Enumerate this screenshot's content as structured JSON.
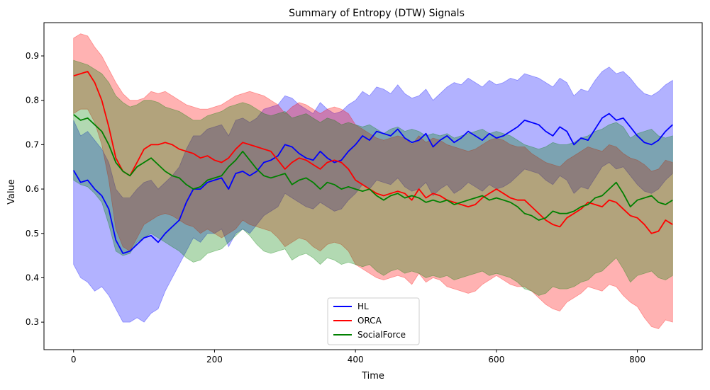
{
  "chart_data": {
    "type": "line",
    "title": "Summary of Entropy (DTW) Signals",
    "xlabel": "Time",
    "ylabel": "Value",
    "xlim": [
      -42,
      892
    ],
    "ylim": [
      0.238,
      0.975
    ],
    "xticks": [
      0,
      200,
      400,
      600,
      800
    ],
    "yticks": [
      0.3,
      0.4,
      0.5,
      0.6,
      0.7,
      0.8,
      0.9
    ],
    "grid": false,
    "legend": {
      "location": "lower center"
    },
    "series": [
      {
        "name": "HL",
        "color": "#0000ff",
        "x": [
          0,
          10,
          20,
          30,
          40,
          50,
          60,
          70,
          80,
          90,
          100,
          110,
          120,
          130,
          140,
          150,
          160,
          170,
          180,
          190,
          200,
          210,
          220,
          230,
          240,
          250,
          260,
          270,
          280,
          290,
          300,
          310,
          320,
          330,
          340,
          350,
          360,
          370,
          380,
          390,
          400,
          410,
          420,
          430,
          440,
          450,
          460,
          470,
          480,
          490,
          500,
          510,
          520,
          530,
          540,
          550,
          560,
          570,
          580,
          590,
          600,
          610,
          620,
          630,
          640,
          650,
          660,
          670,
          680,
          690,
          700,
          710,
          720,
          730,
          740,
          750,
          760,
          770,
          780,
          790,
          800,
          810,
          820,
          830,
          840,
          850
        ],
        "mean": [
          0.642,
          0.615,
          0.62,
          0.6,
          0.585,
          0.555,
          0.485,
          0.455,
          0.46,
          0.475,
          0.49,
          0.495,
          0.48,
          0.5,
          0.515,
          0.53,
          0.57,
          0.6,
          0.6,
          0.615,
          0.62,
          0.625,
          0.6,
          0.635,
          0.64,
          0.63,
          0.64,
          0.66,
          0.665,
          0.675,
          0.7,
          0.695,
          0.68,
          0.67,
          0.665,
          0.685,
          0.67,
          0.66,
          0.665,
          0.685,
          0.7,
          0.72,
          0.71,
          0.73,
          0.725,
          0.72,
          0.735,
          0.715,
          0.705,
          0.71,
          0.725,
          0.695,
          0.71,
          0.72,
          0.705,
          0.715,
          0.73,
          0.72,
          0.71,
          0.725,
          0.715,
          0.72,
          0.73,
          0.74,
          0.755,
          0.75,
          0.745,
          0.73,
          0.72,
          0.74,
          0.73,
          0.7,
          0.715,
          0.71,
          0.735,
          0.76,
          0.77,
          0.755,
          0.76,
          0.74,
          0.72,
          0.705,
          0.7,
          0.71,
          0.73,
          0.745
        ],
        "upper": [
          0.755,
          0.72,
          0.73,
          0.71,
          0.69,
          0.66,
          0.6,
          0.58,
          0.58,
          0.6,
          0.615,
          0.62,
          0.6,
          0.615,
          0.63,
          0.65,
          0.69,
          0.72,
          0.72,
          0.735,
          0.74,
          0.745,
          0.72,
          0.755,
          0.76,
          0.75,
          0.76,
          0.78,
          0.785,
          0.79,
          0.81,
          0.805,
          0.79,
          0.78,
          0.77,
          0.795,
          0.78,
          0.77,
          0.775,
          0.79,
          0.8,
          0.82,
          0.81,
          0.83,
          0.825,
          0.815,
          0.835,
          0.815,
          0.805,
          0.81,
          0.825,
          0.8,
          0.815,
          0.83,
          0.84,
          0.835,
          0.85,
          0.84,
          0.83,
          0.845,
          0.835,
          0.84,
          0.85,
          0.845,
          0.86,
          0.855,
          0.85,
          0.84,
          0.83,
          0.85,
          0.84,
          0.81,
          0.825,
          0.82,
          0.845,
          0.865,
          0.875,
          0.86,
          0.865,
          0.85,
          0.83,
          0.815,
          0.81,
          0.82,
          0.835,
          0.845
        ],
        "lower": [
          0.43,
          0.4,
          0.39,
          0.37,
          0.38,
          0.36,
          0.33,
          0.3,
          0.3,
          0.31,
          0.3,
          0.32,
          0.33,
          0.37,
          0.4,
          0.43,
          0.46,
          0.49,
          0.48,
          0.5,
          0.5,
          0.51,
          0.47,
          0.5,
          0.51,
          0.5,
          0.52,
          0.54,
          0.55,
          0.56,
          0.59,
          0.58,
          0.57,
          0.56,
          0.555,
          0.57,
          0.56,
          0.55,
          0.555,
          0.575,
          0.59,
          0.61,
          0.6,
          0.62,
          0.615,
          0.61,
          0.625,
          0.605,
          0.595,
          0.6,
          0.615,
          0.585,
          0.6,
          0.61,
          0.59,
          0.6,
          0.615,
          0.605,
          0.595,
          0.61,
          0.6,
          0.605,
          0.615,
          0.63,
          0.645,
          0.64,
          0.635,
          0.62,
          0.61,
          0.63,
          0.62,
          0.59,
          0.605,
          0.6,
          0.625,
          0.65,
          0.66,
          0.645,
          0.65,
          0.63,
          0.61,
          0.595,
          0.59,
          0.6,
          0.62,
          0.635
        ]
      },
      {
        "name": "ORCA",
        "color": "#ff0000",
        "x": [
          0,
          10,
          20,
          30,
          40,
          50,
          60,
          70,
          80,
          90,
          100,
          110,
          120,
          130,
          140,
          150,
          160,
          170,
          180,
          190,
          200,
          210,
          220,
          230,
          240,
          250,
          260,
          270,
          280,
          290,
          300,
          310,
          320,
          330,
          340,
          350,
          360,
          370,
          380,
          390,
          400,
          410,
          420,
          430,
          440,
          450,
          460,
          470,
          480,
          490,
          500,
          510,
          520,
          530,
          540,
          550,
          560,
          570,
          580,
          590,
          600,
          610,
          620,
          630,
          640,
          650,
          660,
          670,
          680,
          690,
          700,
          710,
          720,
          730,
          740,
          750,
          760,
          770,
          780,
          790,
          800,
          810,
          820,
          830,
          840,
          850
        ],
        "mean": [
          0.855,
          0.86,
          0.865,
          0.84,
          0.8,
          0.74,
          0.67,
          0.64,
          0.63,
          0.66,
          0.69,
          0.7,
          0.7,
          0.705,
          0.7,
          0.69,
          0.685,
          0.68,
          0.67,
          0.675,
          0.665,
          0.66,
          0.67,
          0.69,
          0.705,
          0.7,
          0.695,
          0.69,
          0.685,
          0.665,
          0.645,
          0.66,
          0.67,
          0.665,
          0.655,
          0.645,
          0.66,
          0.665,
          0.66,
          0.645,
          0.62,
          0.61,
          0.6,
          0.59,
          0.585,
          0.59,
          0.595,
          0.59,
          0.575,
          0.6,
          0.58,
          0.59,
          0.585,
          0.575,
          0.57,
          0.565,
          0.56,
          0.565,
          0.58,
          0.59,
          0.6,
          0.59,
          0.58,
          0.575,
          0.575,
          0.56,
          0.545,
          0.53,
          0.52,
          0.515,
          0.535,
          0.545,
          0.555,
          0.57,
          0.565,
          0.56,
          0.575,
          0.57,
          0.555,
          0.54,
          0.535,
          0.52,
          0.5,
          0.505,
          0.53,
          0.52
        ],
        "upper": [
          0.94,
          0.95,
          0.945,
          0.92,
          0.9,
          0.87,
          0.84,
          0.815,
          0.8,
          0.8,
          0.805,
          0.82,
          0.815,
          0.82,
          0.81,
          0.8,
          0.79,
          0.785,
          0.78,
          0.78,
          0.785,
          0.79,
          0.8,
          0.81,
          0.815,
          0.82,
          0.815,
          0.81,
          0.8,
          0.79,
          0.77,
          0.785,
          0.795,
          0.79,
          0.78,
          0.77,
          0.78,
          0.785,
          0.78,
          0.77,
          0.745,
          0.735,
          0.725,
          0.715,
          0.71,
          0.715,
          0.72,
          0.715,
          0.7,
          0.72,
          0.705,
          0.715,
          0.71,
          0.7,
          0.695,
          0.69,
          0.685,
          0.69,
          0.7,
          0.71,
          0.715,
          0.71,
          0.7,
          0.695,
          0.695,
          0.68,
          0.67,
          0.66,
          0.655,
          0.65,
          0.665,
          0.675,
          0.685,
          0.695,
          0.69,
          0.685,
          0.7,
          0.695,
          0.68,
          0.67,
          0.665,
          0.655,
          0.64,
          0.645,
          0.665,
          0.66
        ],
        "lower": [
          0.77,
          0.78,
          0.78,
          0.75,
          0.7,
          0.62,
          0.51,
          0.47,
          0.46,
          0.49,
          0.52,
          0.53,
          0.54,
          0.545,
          0.54,
          0.53,
          0.52,
          0.515,
          0.5,
          0.51,
          0.5,
          0.49,
          0.5,
          0.51,
          0.53,
          0.52,
          0.515,
          0.51,
          0.505,
          0.49,
          0.47,
          0.48,
          0.49,
          0.485,
          0.47,
          0.46,
          0.475,
          0.48,
          0.475,
          0.46,
          0.43,
          0.42,
          0.41,
          0.4,
          0.395,
          0.4,
          0.405,
          0.4,
          0.385,
          0.41,
          0.39,
          0.4,
          0.395,
          0.38,
          0.375,
          0.37,
          0.365,
          0.37,
          0.385,
          0.395,
          0.405,
          0.395,
          0.385,
          0.38,
          0.38,
          0.37,
          0.355,
          0.34,
          0.33,
          0.325,
          0.345,
          0.355,
          0.365,
          0.38,
          0.375,
          0.37,
          0.385,
          0.38,
          0.36,
          0.345,
          0.335,
          0.31,
          0.29,
          0.285,
          0.305,
          0.3
        ]
      },
      {
        "name": "SocialForce",
        "color": "#008000",
        "x": [
          0,
          10,
          20,
          30,
          40,
          50,
          60,
          70,
          80,
          90,
          100,
          110,
          120,
          130,
          140,
          150,
          160,
          170,
          180,
          190,
          200,
          210,
          220,
          230,
          240,
          250,
          260,
          270,
          280,
          290,
          300,
          310,
          320,
          330,
          340,
          350,
          360,
          370,
          380,
          390,
          400,
          410,
          420,
          430,
          440,
          450,
          460,
          470,
          480,
          490,
          500,
          510,
          520,
          530,
          540,
          550,
          560,
          570,
          580,
          590,
          600,
          610,
          620,
          630,
          640,
          650,
          660,
          670,
          680,
          690,
          700,
          710,
          720,
          730,
          740,
          750,
          760,
          770,
          780,
          790,
          800,
          810,
          820,
          830,
          840,
          850
        ],
        "mean": [
          0.768,
          0.755,
          0.76,
          0.745,
          0.73,
          0.7,
          0.66,
          0.64,
          0.63,
          0.65,
          0.66,
          0.67,
          0.655,
          0.64,
          0.63,
          0.625,
          0.61,
          0.6,
          0.605,
          0.62,
          0.625,
          0.63,
          0.65,
          0.665,
          0.685,
          0.665,
          0.645,
          0.63,
          0.625,
          0.63,
          0.635,
          0.61,
          0.62,
          0.625,
          0.615,
          0.6,
          0.615,
          0.61,
          0.6,
          0.605,
          0.6,
          0.595,
          0.6,
          0.585,
          0.575,
          0.585,
          0.59,
          0.58,
          0.585,
          0.58,
          0.57,
          0.575,
          0.57,
          0.575,
          0.565,
          0.57,
          0.575,
          0.58,
          0.585,
          0.575,
          0.58,
          0.575,
          0.57,
          0.56,
          0.545,
          0.54,
          0.53,
          0.535,
          0.55,
          0.545,
          0.545,
          0.55,
          0.56,
          0.565,
          0.58,
          0.585,
          0.6,
          0.615,
          0.59,
          0.56,
          0.575,
          0.58,
          0.585,
          0.57,
          0.565,
          0.575
        ],
        "upper": [
          0.89,
          0.885,
          0.88,
          0.87,
          0.86,
          0.84,
          0.81,
          0.795,
          0.785,
          0.79,
          0.8,
          0.8,
          0.795,
          0.785,
          0.78,
          0.775,
          0.765,
          0.755,
          0.755,
          0.765,
          0.77,
          0.775,
          0.785,
          0.79,
          0.795,
          0.79,
          0.78,
          0.77,
          0.765,
          0.77,
          0.775,
          0.76,
          0.765,
          0.77,
          0.76,
          0.75,
          0.76,
          0.755,
          0.745,
          0.75,
          0.745,
          0.74,
          0.745,
          0.735,
          0.725,
          0.735,
          0.74,
          0.73,
          0.735,
          0.73,
          0.72,
          0.725,
          0.72,
          0.725,
          0.715,
          0.72,
          0.725,
          0.73,
          0.735,
          0.725,
          0.73,
          0.725,
          0.72,
          0.71,
          0.7,
          0.695,
          0.69,
          0.695,
          0.705,
          0.7,
          0.7,
          0.705,
          0.715,
          0.72,
          0.73,
          0.735,
          0.745,
          0.75,
          0.74,
          0.715,
          0.725,
          0.73,
          0.735,
          0.72,
          0.715,
          0.72
        ],
        "lower": [
          0.62,
          0.61,
          0.605,
          0.59,
          0.57,
          0.52,
          0.46,
          0.45,
          0.455,
          0.48,
          0.49,
          0.5,
          0.49,
          0.48,
          0.47,
          0.46,
          0.445,
          0.435,
          0.44,
          0.455,
          0.46,
          0.465,
          0.48,
          0.495,
          0.51,
          0.495,
          0.475,
          0.46,
          0.455,
          0.46,
          0.465,
          0.44,
          0.45,
          0.455,
          0.445,
          0.43,
          0.445,
          0.44,
          0.43,
          0.435,
          0.43,
          0.425,
          0.43,
          0.415,
          0.405,
          0.415,
          0.42,
          0.41,
          0.415,
          0.41,
          0.4,
          0.405,
          0.4,
          0.405,
          0.395,
          0.4,
          0.405,
          0.41,
          0.415,
          0.405,
          0.41,
          0.405,
          0.4,
          0.39,
          0.375,
          0.37,
          0.36,
          0.365,
          0.38,
          0.375,
          0.375,
          0.38,
          0.39,
          0.395,
          0.41,
          0.415,
          0.43,
          0.445,
          0.42,
          0.39,
          0.405,
          0.41,
          0.415,
          0.4,
          0.395,
          0.405
        ]
      }
    ]
  }
}
